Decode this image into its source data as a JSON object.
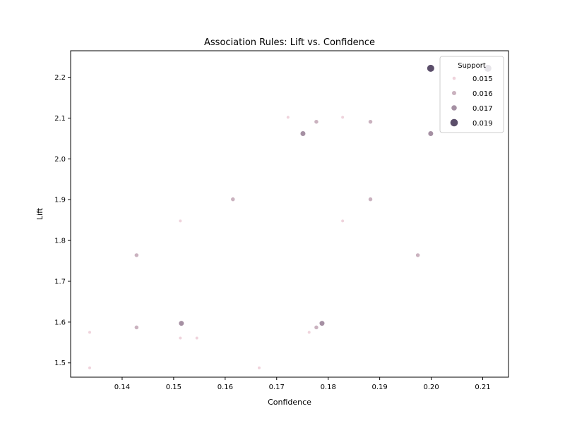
{
  "chart_data": {
    "type": "scatter",
    "title": "Association Rules: Lift vs. Confidence",
    "xlabel": "Confidence",
    "ylabel": "Lift",
    "xlim": [
      0.13,
      0.215
    ],
    "ylim": [
      1.465,
      2.265
    ],
    "xticks": [
      0.14,
      0.15,
      0.16,
      0.17,
      0.18,
      0.19,
      0.2,
      0.21
    ],
    "xtick_labels": [
      "0.14",
      "0.15",
      "0.16",
      "0.17",
      "0.18",
      "0.19",
      "0.20",
      "0.21"
    ],
    "yticks": [
      1.5,
      1.6,
      1.7,
      1.8,
      1.9,
      2.0,
      2.1,
      2.2
    ],
    "ytick_labels": [
      "1.5",
      "1.6",
      "1.7",
      "1.8",
      "1.9",
      "2.0",
      "2.1",
      "2.2"
    ],
    "legend": {
      "title": "Support",
      "placement": "top-right",
      "entries": [
        {
          "label": "0.015",
          "support": 0.015
        },
        {
          "label": "0.016",
          "support": 0.016
        },
        {
          "label": "0.017",
          "support": 0.017
        },
        {
          "label": "0.019",
          "support": 0.019
        }
      ]
    },
    "hue_range": [
      0.015,
      0.019
    ],
    "colors": {
      "low": "#efd3dc",
      "high": "#5b4e6a"
    },
    "points": [
      {
        "x": 0.1337,
        "y": 1.488,
        "support": 0.015
      },
      {
        "x": 0.1337,
        "y": 1.575,
        "support": 0.015
      },
      {
        "x": 0.1428,
        "y": 1.587,
        "support": 0.016
      },
      {
        "x": 0.1428,
        "y": 1.764,
        "support": 0.016
      },
      {
        "x": 0.1515,
        "y": 1.597,
        "support": 0.017
      },
      {
        "x": 0.1513,
        "y": 1.561,
        "support": 0.015
      },
      {
        "x": 0.1545,
        "y": 1.561,
        "support": 0.015
      },
      {
        "x": 0.1513,
        "y": 1.848,
        "support": 0.015
      },
      {
        "x": 0.1615,
        "y": 1.901,
        "support": 0.016
      },
      {
        "x": 0.1666,
        "y": 1.488,
        "support": 0.015
      },
      {
        "x": 0.1722,
        "y": 2.102,
        "support": 0.015
      },
      {
        "x": 0.1751,
        "y": 2.062,
        "support": 0.017
      },
      {
        "x": 0.1777,
        "y": 2.091,
        "support": 0.016
      },
      {
        "x": 0.1763,
        "y": 1.575,
        "support": 0.015
      },
      {
        "x": 0.1777,
        "y": 1.587,
        "support": 0.016
      },
      {
        "x": 0.1788,
        "y": 1.597,
        "support": 0.017
      },
      {
        "x": 0.1828,
        "y": 2.102,
        "support": 0.015
      },
      {
        "x": 0.1828,
        "y": 1.848,
        "support": 0.015
      },
      {
        "x": 0.1882,
        "y": 2.091,
        "support": 0.016
      },
      {
        "x": 0.1882,
        "y": 1.901,
        "support": 0.016
      },
      {
        "x": 0.1974,
        "y": 1.764,
        "support": 0.016
      },
      {
        "x": 0.1999,
        "y": 2.062,
        "support": 0.017
      },
      {
        "x": 0.1999,
        "y": 2.222,
        "support": 0.019
      },
      {
        "x": 0.211,
        "y": 2.222,
        "support": 0.019
      }
    ]
  }
}
